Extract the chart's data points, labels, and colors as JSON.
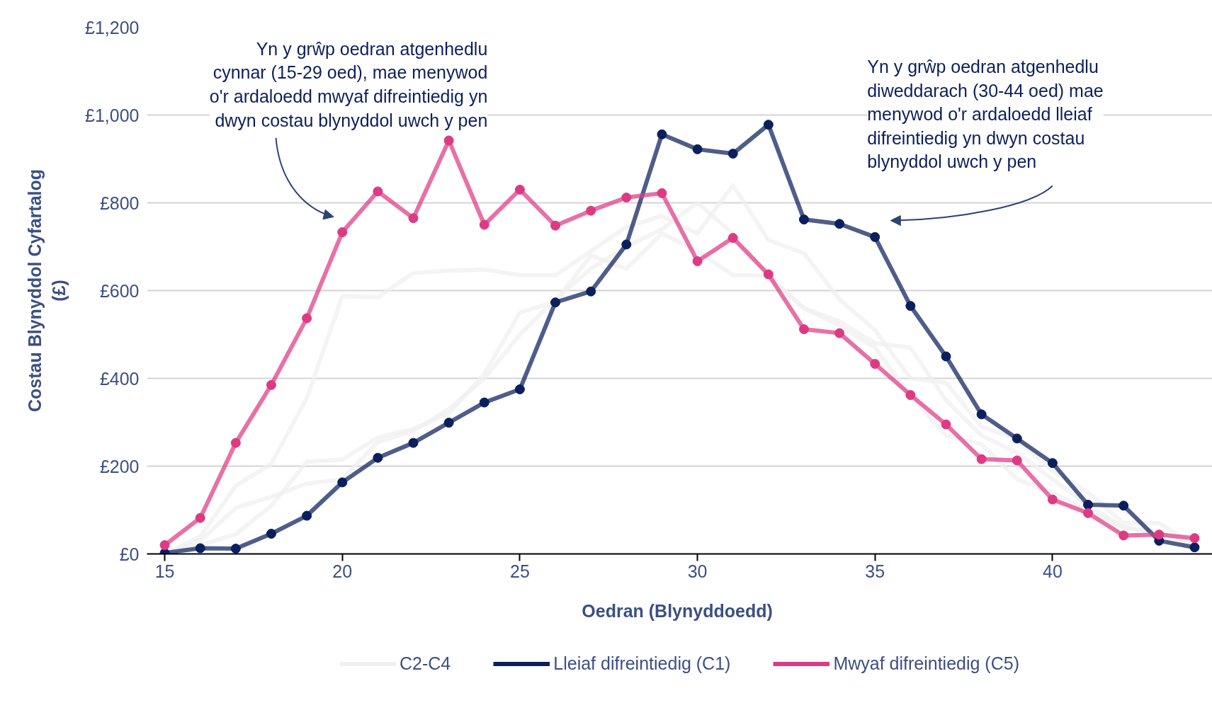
{
  "chart_data": {
    "type": "line",
    "xlabel": "Oedran  (Blynyddoedd)",
    "ylabel": "Costau Blynyddol Cyfartalog\n(£)",
    "x": [
      15,
      16,
      17,
      18,
      19,
      20,
      21,
      22,
      23,
      24,
      25,
      26,
      27,
      28,
      29,
      30,
      31,
      32,
      33,
      34,
      35,
      36,
      37,
      38,
      39,
      40,
      41,
      42,
      43,
      44
    ],
    "xlim": [
      14.5,
      44.5
    ],
    "xticks": [
      15,
      20,
      25,
      30,
      35,
      40
    ],
    "ylim": [
      0,
      1200
    ],
    "yticks": [
      {
        "value": 0,
        "label": "£0"
      },
      {
        "value": 200,
        "label": "£200"
      },
      {
        "value": 400,
        "label": "£400"
      },
      {
        "value": 600,
        "label": "£600"
      },
      {
        "value": 800,
        "label": "£800"
      },
      {
        "value": 1000,
        "label": "£1,000"
      },
      {
        "value": 1200,
        "label": "£1,200"
      }
    ],
    "grid": "y",
    "legend": "bottom",
    "line_style": "solid",
    "series": [
      {
        "name": "C2-C4",
        "color": "#f0f0f0",
        "marker": "none",
        "values": [
          0,
          40,
          155,
          205,
          355,
          587,
          585,
          640,
          645,
          648,
          635,
          635,
          690,
          745,
          770,
          730,
          840,
          715,
          685,
          580,
          510,
          400,
          390,
          290,
          260,
          190,
          140,
          70,
          70,
          20
        ]
      },
      {
        "color": "#f0f0f0",
        "marker": "none",
        "values": [
          0,
          30,
          105,
          130,
          160,
          170,
          255,
          280,
          330,
          400,
          500,
          580,
          650,
          700,
          740,
          800,
          730,
          630,
          560,
          530,
          480,
          470,
          350,
          270,
          230,
          170,
          110,
          60,
          50,
          20
        ]
      },
      {
        "color": "#f0f0f0",
        "marker": "none",
        "values": [
          0,
          20,
          45,
          110,
          210,
          215,
          265,
          285,
          320,
          410,
          550,
          575,
          680,
          650,
          730,
          690,
          635,
          635,
          560,
          520,
          470,
          360,
          270,
          250,
          170,
          140,
          100,
          60,
          50,
          25
        ]
      },
      {
        "name": "Lleiaf difreintiedig (C1)",
        "color": "#0b1f5c",
        "marker": "circle",
        "values": [
          2,
          13,
          12,
          46,
          87,
          163,
          219,
          253,
          299,
          345,
          375,
          573,
          598,
          705,
          956,
          922,
          912,
          978,
          762,
          752,
          722,
          565,
          450,
          318,
          263,
          207,
          112,
          110,
          30,
          15
        ]
      },
      {
        "name": "Mwyaf difreintiedig (C5)",
        "color": "#de3a84",
        "marker": "circle",
        "values": [
          20,
          82,
          253,
          385,
          537,
          733,
          826,
          765,
          942,
          750,
          830,
          748,
          782,
          812,
          822,
          667,
          720,
          637,
          512,
          503,
          433,
          362,
          295,
          216,
          213,
          124,
          93,
          42,
          44,
          36
        ]
      }
    ],
    "annotations": [
      "Yn y grŵp oedran atgenhedlu\ncynnar (15-29 oed), mae menywod\no'r ardaloedd mwyaf difreintiedig yn\ndwyn costau blynyddol uwch y pen",
      "Yn y grŵp oedran atgenhedlu\ndiweddarach (30-44 oed) mae\nmenywod o'r ardaloedd lleiaf\ndifreintiedig yn dwyn costau\nblynyddol uwch y pen"
    ]
  }
}
